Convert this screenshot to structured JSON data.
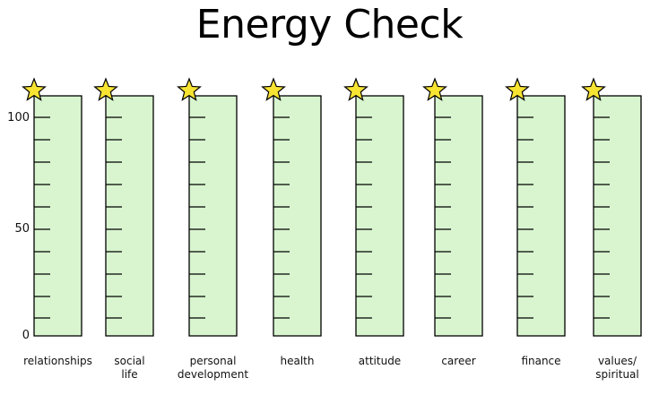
{
  "title": "Energy Check",
  "y_axis": {
    "ticks": [
      "100",
      "50",
      "0"
    ],
    "min": 0,
    "max": 100
  },
  "meters": [
    {
      "label_lines": [
        "relationships"
      ]
    },
    {
      "label_lines": [
        "social",
        "life"
      ]
    },
    {
      "label_lines": [
        "personal",
        "development"
      ]
    },
    {
      "label_lines": [
        "health"
      ]
    },
    {
      "label_lines": [
        "attitude"
      ]
    },
    {
      "label_lines": [
        "career"
      ]
    },
    {
      "label_lines": [
        "finance"
      ]
    },
    {
      "label_lines": [
        "values/",
        "spiritual"
      ]
    }
  ],
  "colors": {
    "meter_fill": "#d8f5cf",
    "meter_stroke": "#000000",
    "star_fill": "#f7e332",
    "star_stroke": "#000000"
  },
  "icons": {
    "meter_top": "star-icon"
  }
}
